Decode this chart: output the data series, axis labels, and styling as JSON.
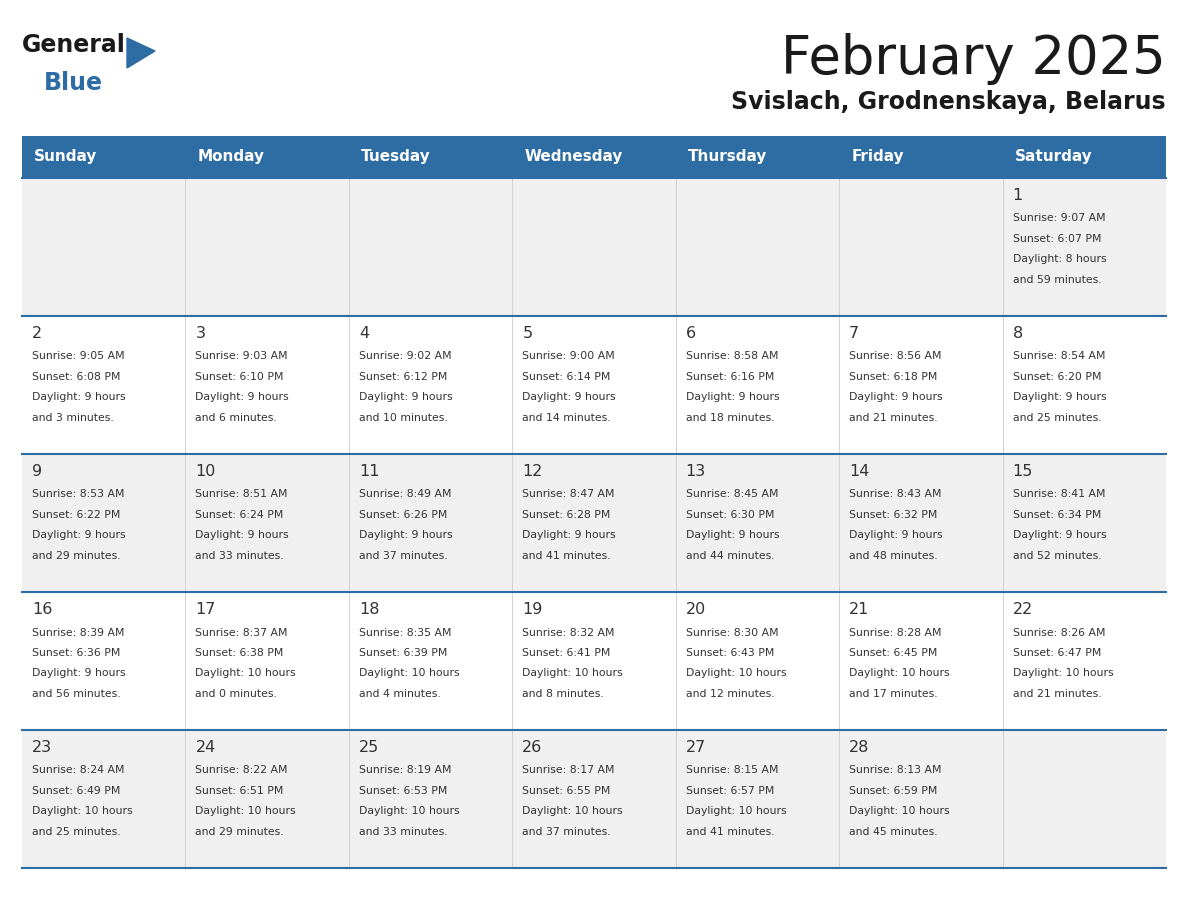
{
  "title": "February 2025",
  "subtitle": "Svislach, Grodnenskaya, Belarus",
  "header_bg": "#2E6DA4",
  "header_text_color": "#FFFFFF",
  "days_of_week": [
    "Sunday",
    "Monday",
    "Tuesday",
    "Wednesday",
    "Thursday",
    "Friday",
    "Saturday"
  ],
  "row_bg_even": "#F0F0F0",
  "row_bg_odd": "#FFFFFF",
  "cell_border_color": "#2E6DA4",
  "text_color": "#333333",
  "calendar": [
    [
      {
        "day": "",
        "lines": []
      },
      {
        "day": "",
        "lines": []
      },
      {
        "day": "",
        "lines": []
      },
      {
        "day": "",
        "lines": []
      },
      {
        "day": "",
        "lines": []
      },
      {
        "day": "",
        "lines": []
      },
      {
        "day": "1",
        "lines": [
          "Sunrise: 9:07 AM",
          "Sunset: 6:07 PM",
          "Daylight: 8 hours",
          "and 59 minutes."
        ]
      }
    ],
    [
      {
        "day": "2",
        "lines": [
          "Sunrise: 9:05 AM",
          "Sunset: 6:08 PM",
          "Daylight: 9 hours",
          "and 3 minutes."
        ]
      },
      {
        "day": "3",
        "lines": [
          "Sunrise: 9:03 AM",
          "Sunset: 6:10 PM",
          "Daylight: 9 hours",
          "and 6 minutes."
        ]
      },
      {
        "day": "4",
        "lines": [
          "Sunrise: 9:02 AM",
          "Sunset: 6:12 PM",
          "Daylight: 9 hours",
          "and 10 minutes."
        ]
      },
      {
        "day": "5",
        "lines": [
          "Sunrise: 9:00 AM",
          "Sunset: 6:14 PM",
          "Daylight: 9 hours",
          "and 14 minutes."
        ]
      },
      {
        "day": "6",
        "lines": [
          "Sunrise: 8:58 AM",
          "Sunset: 6:16 PM",
          "Daylight: 9 hours",
          "and 18 minutes."
        ]
      },
      {
        "day": "7",
        "lines": [
          "Sunrise: 8:56 AM",
          "Sunset: 6:18 PM",
          "Daylight: 9 hours",
          "and 21 minutes."
        ]
      },
      {
        "day": "8",
        "lines": [
          "Sunrise: 8:54 AM",
          "Sunset: 6:20 PM",
          "Daylight: 9 hours",
          "and 25 minutes."
        ]
      }
    ],
    [
      {
        "day": "9",
        "lines": [
          "Sunrise: 8:53 AM",
          "Sunset: 6:22 PM",
          "Daylight: 9 hours",
          "and 29 minutes."
        ]
      },
      {
        "day": "10",
        "lines": [
          "Sunrise: 8:51 AM",
          "Sunset: 6:24 PM",
          "Daylight: 9 hours",
          "and 33 minutes."
        ]
      },
      {
        "day": "11",
        "lines": [
          "Sunrise: 8:49 AM",
          "Sunset: 6:26 PM",
          "Daylight: 9 hours",
          "and 37 minutes."
        ]
      },
      {
        "day": "12",
        "lines": [
          "Sunrise: 8:47 AM",
          "Sunset: 6:28 PM",
          "Daylight: 9 hours",
          "and 41 minutes."
        ]
      },
      {
        "day": "13",
        "lines": [
          "Sunrise: 8:45 AM",
          "Sunset: 6:30 PM",
          "Daylight: 9 hours",
          "and 44 minutes."
        ]
      },
      {
        "day": "14",
        "lines": [
          "Sunrise: 8:43 AM",
          "Sunset: 6:32 PM",
          "Daylight: 9 hours",
          "and 48 minutes."
        ]
      },
      {
        "day": "15",
        "lines": [
          "Sunrise: 8:41 AM",
          "Sunset: 6:34 PM",
          "Daylight: 9 hours",
          "and 52 minutes."
        ]
      }
    ],
    [
      {
        "day": "16",
        "lines": [
          "Sunrise: 8:39 AM",
          "Sunset: 6:36 PM",
          "Daylight: 9 hours",
          "and 56 minutes."
        ]
      },
      {
        "day": "17",
        "lines": [
          "Sunrise: 8:37 AM",
          "Sunset: 6:38 PM",
          "Daylight: 10 hours",
          "and 0 minutes."
        ]
      },
      {
        "day": "18",
        "lines": [
          "Sunrise: 8:35 AM",
          "Sunset: 6:39 PM",
          "Daylight: 10 hours",
          "and 4 minutes."
        ]
      },
      {
        "day": "19",
        "lines": [
          "Sunrise: 8:32 AM",
          "Sunset: 6:41 PM",
          "Daylight: 10 hours",
          "and 8 minutes."
        ]
      },
      {
        "day": "20",
        "lines": [
          "Sunrise: 8:30 AM",
          "Sunset: 6:43 PM",
          "Daylight: 10 hours",
          "and 12 minutes."
        ]
      },
      {
        "day": "21",
        "lines": [
          "Sunrise: 8:28 AM",
          "Sunset: 6:45 PM",
          "Daylight: 10 hours",
          "and 17 minutes."
        ]
      },
      {
        "day": "22",
        "lines": [
          "Sunrise: 8:26 AM",
          "Sunset: 6:47 PM",
          "Daylight: 10 hours",
          "and 21 minutes."
        ]
      }
    ],
    [
      {
        "day": "23",
        "lines": [
          "Sunrise: 8:24 AM",
          "Sunset: 6:49 PM",
          "Daylight: 10 hours",
          "and 25 minutes."
        ]
      },
      {
        "day": "24",
        "lines": [
          "Sunrise: 8:22 AM",
          "Sunset: 6:51 PM",
          "Daylight: 10 hours",
          "and 29 minutes."
        ]
      },
      {
        "day": "25",
        "lines": [
          "Sunrise: 8:19 AM",
          "Sunset: 6:53 PM",
          "Daylight: 10 hours",
          "and 33 minutes."
        ]
      },
      {
        "day": "26",
        "lines": [
          "Sunrise: 8:17 AM",
          "Sunset: 6:55 PM",
          "Daylight: 10 hours",
          "and 37 minutes."
        ]
      },
      {
        "day": "27",
        "lines": [
          "Sunrise: 8:15 AM",
          "Sunset: 6:57 PM",
          "Daylight: 10 hours",
          "and 41 minutes."
        ]
      },
      {
        "day": "28",
        "lines": [
          "Sunrise: 8:13 AM",
          "Sunset: 6:59 PM",
          "Daylight: 10 hours",
          "and 45 minutes."
        ]
      },
      {
        "day": "",
        "lines": []
      }
    ]
  ],
  "logo_general_color": "#1a1a1a",
  "logo_blue_color": "#2E6DA4",
  "logo_triangle_color": "#2E6DA4"
}
